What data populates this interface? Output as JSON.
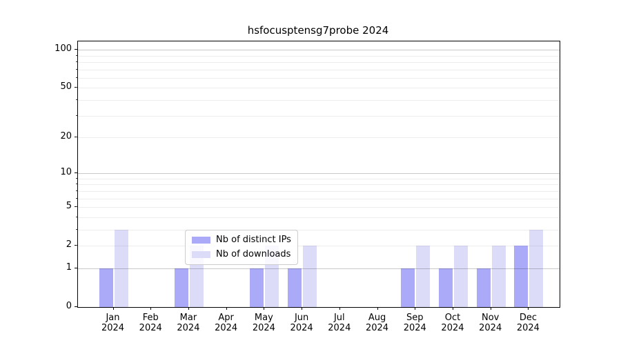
{
  "title": "hsfocusptensg7probe 2024",
  "legend": {
    "items": [
      {
        "label": "Nb of distinct IPs",
        "color": "#aaaaf8"
      },
      {
        "label": "Nb of downloads",
        "color": "#dcdcf9"
      }
    ]
  },
  "chart_data": {
    "type": "bar",
    "title": "hsfocusptensg7probe 2024",
    "categories": [
      "Jan 2024",
      "Feb 2024",
      "Mar 2024",
      "Apr 2024",
      "May 2024",
      "Jun 2024",
      "Jul 2024",
      "Aug 2024",
      "Sep 2024",
      "Oct 2024",
      "Nov 2024",
      "Dec 2024"
    ],
    "series": [
      {
        "name": "Nb of distinct IPs",
        "color": "#aaaaf8",
        "values": [
          1,
          0,
          1,
          0,
          1,
          1,
          0,
          0,
          1,
          1,
          1,
          2
        ]
      },
      {
        "name": "Nb of downloads",
        "color": "#dcdcf9",
        "values": [
          3,
          0,
          2,
          0,
          2,
          2,
          0,
          0,
          2,
          2,
          2,
          3
        ]
      }
    ],
    "yticks": [
      0,
      1,
      2,
      5,
      10,
      20,
      50,
      100
    ],
    "ylim": [
      0,
      116
    ],
    "scale": "log1p",
    "grid": true,
    "grid_on_top": true,
    "legend_position": "lower center",
    "xlabel": "",
    "ylabel": ""
  }
}
